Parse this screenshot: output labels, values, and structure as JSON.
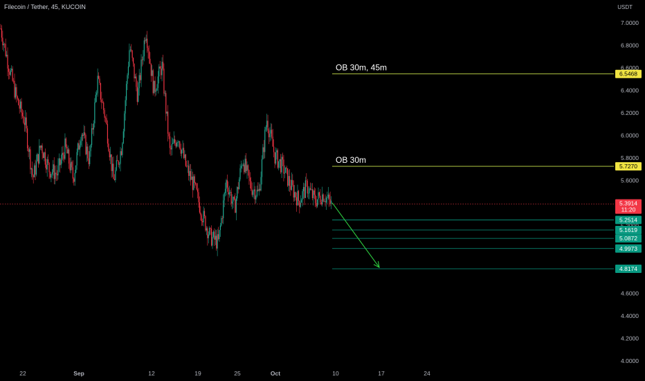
{
  "header": {
    "symbol_text": "Filecoin / Tether, 45, KUCOIN",
    "price_unit": "USDT"
  },
  "chart_data": {
    "type": "candlestick",
    "symbol": "Filecoin / Tether",
    "interval": "45",
    "exchange": "KUCOIN",
    "x_ticks": [
      "22",
      "Sep",
      "12",
      "19",
      "25",
      "Oct",
      "10",
      "17",
      "24"
    ],
    "y_ticks": [
      "4.0000",
      "4.2000",
      "4.4000",
      "4.6000",
      "4.8000",
      "5.0000",
      "5.2000",
      "5.4000",
      "5.6000",
      "5.8000",
      "6.0000",
      "6.2000",
      "6.4000",
      "6.6000",
      "6.8000",
      "7.0000"
    ],
    "ylim": [
      4.0,
      7.0
    ],
    "current_price": {
      "value": "5.3914",
      "countdown": "11:20",
      "color": "#f23645"
    },
    "price_path": [
      6.95,
      6.62,
      6.32,
      6.12,
      5.62,
      5.92,
      5.7,
      5.66,
      5.9,
      5.62,
      6.05,
      5.78,
      6.5,
      6.15,
      5.6,
      5.9,
      6.8,
      6.35,
      6.95,
      6.4,
      6.62,
      5.85,
      6.0,
      5.72,
      5.55,
      5.3,
      5.1,
      5.05,
      5.6,
      5.35,
      5.8,
      5.55,
      5.48,
      6.15,
      5.82,
      5.72,
      5.55,
      5.42,
      5.55,
      5.42,
      5.48,
      5.39
    ],
    "annotations": [
      {
        "label": "OB 30m, 45m",
        "price": "6.5468",
        "value": 6.5468,
        "line_color": "#c9e34b",
        "tag_color": "#f0e442",
        "tag_text_color": "#000000"
      },
      {
        "label": "OB 30m",
        "price": "5.7270",
        "value": 5.727,
        "line_color": "#c9e34b",
        "tag_color": "#f0e442",
        "tag_text_color": "#000000"
      }
    ],
    "target_levels": [
      {
        "price": "5.2514",
        "value": 5.2514
      },
      {
        "price": "5.1619",
        "value": 5.1619
      },
      {
        "price": "5.0872",
        "value": 5.0872
      },
      {
        "price": "4.9973",
        "value": 4.9973
      },
      {
        "price": "4.8174",
        "value": 4.8174
      }
    ],
    "target_color": "#089981",
    "up_color": "#22ab94",
    "down_color": "#f23645",
    "projection_color": "#2ecc40"
  }
}
